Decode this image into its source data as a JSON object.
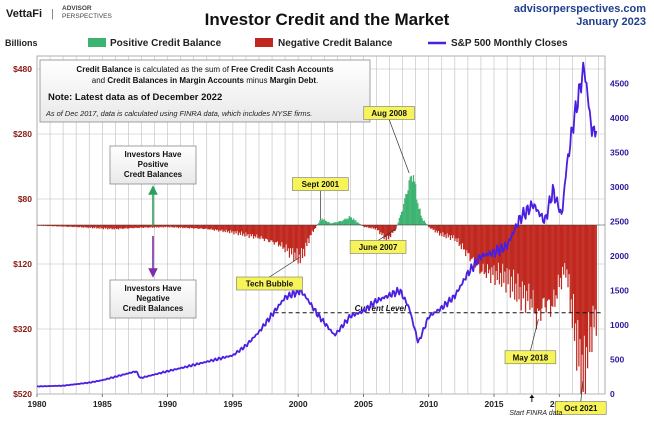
{
  "header": {
    "brand": "VettaFi",
    "brand_pipe": "|",
    "brand_sub_1": "ADVISOR",
    "brand_sub_2": "PERSPECTIVES",
    "site": "advisorperspectives.com",
    "date": "January 2023"
  },
  "colors": {
    "positive": "#3cb371",
    "negative": "#c0281f",
    "sp500": "#4a1fe0",
    "callout_fill": "#f7f45a",
    "grid": "#bdbdbd"
  },
  "notes": {
    "line1_a": "Credit Balance",
    "line1_b": " is calculated as the sum of ",
    "line1_c": "Free Credit Cash Accounts",
    "line2_a": "and ",
    "line2_b": "Credit Balances in Margin Accounts",
    "line2_c": " minus ",
    "line2_d": "Margin Debt",
    "line2_e": ".",
    "latest": "Note: Latest data as of December 2022",
    "finra": "As of Dec 2017, data is calculated using FINRA data, which includes NYSE firms."
  },
  "side_labels": {
    "positive": [
      "Investors Have",
      "Positive",
      "Credt Balances"
    ],
    "negative": [
      "Investors Have",
      "Negative",
      "Credit Balances"
    ]
  },
  "chart_data": {
    "type": "bar+line",
    "title": "Investor Credit and the Market",
    "left_axis_unit": "Billions",
    "legend": {
      "positive": "Positive Credit Balance",
      "negative": "Negative Credit Balance",
      "sp500": "S&P 500 Monthly Closes"
    },
    "x_range": [
      1980,
      2023.5
    ],
    "x_ticks": [
      "1980",
      "1985",
      "1990",
      "1995",
      "2000",
      "2005",
      "2010",
      "2015",
      "2020"
    ],
    "left_axis": {
      "range": [
        -520,
        520
      ],
      "ticks": [
        {
          "v": 480,
          "label": "$480"
        },
        {
          "v": 280,
          "label": "$280"
        },
        {
          "v": 80,
          "label": "$80"
        },
        {
          "v": -120,
          "label": "$120"
        },
        {
          "v": -320,
          "label": "$320"
        },
        {
          "v": -520,
          "label": "$520"
        }
      ]
    },
    "right_axis": {
      "range": [
        0,
        4900
      ],
      "ticks": [
        0,
        500,
        1000,
        1500,
        2000,
        2500,
        3000,
        3500,
        4000,
        4500
      ]
    },
    "credit_balance_billions": {
      "x": [
        1980,
        1983,
        1986,
        1988,
        1990,
        1993,
        1995,
        1997,
        1998.5,
        2000,
        2000.3,
        2001,
        2001.8,
        2002.5,
        2003.3,
        2004,
        2005,
        2006,
        2006.8,
        2007.5,
        2008,
        2008.5,
        2008.8,
        2009.2,
        2009.5,
        2010,
        2011,
        2012,
        2013,
        2014,
        2015,
        2016,
        2017,
        2017.9,
        2018.3,
        2018.8,
        2019.5,
        2020,
        2020.5,
        2021,
        2021.8,
        2022.3,
        2022.9
      ],
      "values": [
        -2,
        -6,
        -12,
        -8,
        -6,
        -12,
        -22,
        -38,
        -58,
        -100,
        -95,
        -28,
        20,
        5,
        12,
        25,
        -5,
        -12,
        -45,
        -12,
        50,
        130,
        160,
        60,
        20,
        -6,
        -30,
        -40,
        -90,
        -140,
        -150,
        -165,
        -210,
        -230,
        -290,
        -240,
        -250,
        -180,
        -130,
        -270,
        -480,
        -350,
        -270
      ]
    },
    "sp500_close": {
      "x": [
        1980,
        1982,
        1984,
        1985,
        1987.6,
        1987.9,
        1990,
        1991,
        1995,
        1996,
        1997,
        1998,
        1999,
        2000.2,
        2000.8,
        2001.5,
        2002.8,
        2004,
        2005,
        2006,
        2007.8,
        2008.5,
        2009.2,
        2010,
        2011,
        2012,
        2013,
        2014,
        2015,
        2016,
        2017,
        2018,
        2018.9,
        2019.5,
        2020.2,
        2020.5,
        2021,
        2021.9,
        2022.5,
        2022.9
      ],
      "values": [
        110,
        120,
        165,
        200,
        330,
        230,
        330,
        375,
        560,
        700,
        900,
        1150,
        1400,
        1500,
        1350,
        1150,
        850,
        1130,
        1200,
        1350,
        1500,
        1250,
        740,
        1120,
        1250,
        1420,
        1750,
        2000,
        2050,
        2150,
        2550,
        2750,
        2500,
        2950,
        2580,
        3200,
        3850,
        4750,
        3800,
        3850
      ]
    },
    "callouts": [
      {
        "label": "Sept 2001",
        "x": 2001.7,
        "y": 15
      },
      {
        "label": "Aug 2008",
        "x": 2008.5,
        "y": 160
      },
      {
        "label": "June 2007",
        "x": 2007.5,
        "y": -12
      },
      {
        "label": "Tech Bubble",
        "x": 2000.1,
        "y": -100
      },
      {
        "label": "May 2018",
        "x": 2018.4,
        "y": -290
      },
      {
        "label": "Oct 2021",
        "x": 2021.8,
        "y": -480
      }
    ],
    "current_level": {
      "label": "Current Level",
      "value": -270,
      "from_x": 1998.2
    },
    "finra_marker": {
      "label": "Start FINRA data",
      "x": 2017.9
    }
  }
}
